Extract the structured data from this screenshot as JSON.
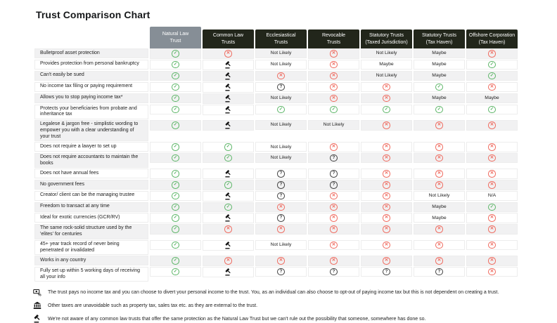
{
  "chart_data": {
    "type": "table",
    "title": "Trust Comparison Chart",
    "columns": [
      {
        "lines": [
          "Natural Law",
          "Trust"
        ],
        "highlight": true
      },
      {
        "lines": [
          "Common Law",
          "Trusts"
        ],
        "highlight": false
      },
      {
        "lines": [
          "Ecclesiastical",
          "Trusts"
        ],
        "highlight": false
      },
      {
        "lines": [
          "Revocable",
          "Trusts"
        ],
        "highlight": false
      },
      {
        "lines": [
          "Statutory Trusts",
          "(Taxed Jurisdiction)"
        ],
        "highlight": false
      },
      {
        "lines": [
          "Statutory Trusts",
          "(Tax Haven)"
        ],
        "highlight": false
      },
      {
        "lines": [
          "Offshore Corporation",
          "(Tax Haven)"
        ],
        "highlight": false
      }
    ],
    "rows": [
      {
        "label": "Bulletproof asset protection",
        "values": [
          "check",
          "cross",
          "Not Likely",
          "cross",
          "Not Likely",
          "Maybe",
          "cross"
        ]
      },
      {
        "label": "Provides protection from personal bankruptcy",
        "values": [
          "check",
          "gavel",
          "Not Likely",
          "cross",
          "Maybe",
          "Maybe",
          "check"
        ]
      },
      {
        "label": "Can't easily be sued",
        "values": [
          "check",
          "gavel",
          "cross",
          "cross",
          "Not Likely",
          "Maybe",
          "check"
        ]
      },
      {
        "label": "No income tax filing or paying requirement",
        "values": [
          "check",
          "gavel",
          "question",
          "cross",
          "cross",
          "check",
          "cross"
        ]
      },
      {
        "label": "Allows you to stop paying income tax*",
        "values": [
          "check",
          "gavel",
          "Not Likely",
          "cross",
          "cross",
          "Maybe",
          "Maybe"
        ]
      },
      {
        "label": "Protects your beneficiaries from probate and inheritance tax",
        "values": [
          "check",
          "gavel",
          "check",
          "check",
          "check",
          "check",
          "check"
        ]
      },
      {
        "label": "Legalese & jargon free - simplistic wording to empower you with a clear understanding of your trust",
        "values": [
          "check",
          "gavel",
          "Not Likely",
          "Not Likely",
          "cross",
          "cross",
          "cross"
        ]
      },
      {
        "label": "Does not require a lawyer to set up",
        "values": [
          "check",
          "check",
          "Not Likely",
          "cross",
          "cross",
          "cross",
          "cross"
        ]
      },
      {
        "label": "Does not require accountants to maintain the books",
        "values": [
          "check",
          "check",
          "Not Likely",
          "question",
          "cross",
          "cross",
          "cross"
        ]
      },
      {
        "label": "Does not have annual fees",
        "values": [
          "check",
          "gavel",
          "question",
          "question",
          "cross",
          "cross",
          "cross"
        ]
      },
      {
        "label": "No government fees",
        "values": [
          "check",
          "check",
          "question",
          "question",
          "cross",
          "cross",
          "cross"
        ]
      },
      {
        "label": "Creator/ client can be the managing trustee",
        "values": [
          "check",
          "gavel",
          "question",
          "cross",
          "cross",
          "Not Likely",
          "N/A"
        ]
      },
      {
        "label": "Freedom to transact at any time",
        "values": [
          "check",
          "check",
          "cross",
          "cross",
          "cross",
          "Maybe",
          "check"
        ]
      },
      {
        "label": "Ideal for exotic currencies (GCR/RV)",
        "values": [
          "check",
          "gavel",
          "question",
          "cross",
          "cross",
          "Maybe",
          "cross"
        ]
      },
      {
        "label": "The same rock-solid structure used by the 'elites' for centuries",
        "values": [
          "check",
          "cross",
          "cross",
          "cross",
          "cross",
          "cross",
          "cross"
        ]
      },
      {
        "label": "45+ year track record of never being penetrated or invalidated",
        "values": [
          "check",
          "gavel",
          "Not Likely",
          "cross",
          "cross",
          "cross",
          "cross"
        ]
      },
      {
        "label": "Works in any country",
        "values": [
          "check",
          "cross",
          "cross",
          "cross",
          "cross",
          "cross",
          "cross"
        ]
      },
      {
        "label": "Fully set up within 5 working days of receiving all your info",
        "values": [
          "check",
          "gavel",
          "question",
          "question",
          "question",
          "question",
          "cross"
        ]
      }
    ]
  },
  "icons": {
    "check": "✓",
    "cross": "✕",
    "question": "?"
  },
  "colors": {
    "check": "#5cb567",
    "cross": "#ef695d",
    "question": "#404040",
    "header-dark": "#22261b",
    "header-highlight": "#868e96",
    "row-alt": "#f1f1f2",
    "hairline": "#ededed"
  },
  "footnotes": [
    {
      "icon": "money-tax-icon",
      "text": "The trust pays no income tax and you can choose to divert your personal income to the trust. You, as an individual can also choose to opt-out of paying income tax but this is not dependent on creating a trust."
    },
    {
      "icon": "bank-building-icon",
      "text": "Other taxes are unavoidable such as property tax, sales tax etc. as they are external to the trust."
    },
    {
      "icon": "gavel-icon",
      "text": "We're not aware of any common law trusts that offer the same protection as the Natural Law Trust but we can't rule out the possibility that someone, somewhere has done so."
    }
  ]
}
